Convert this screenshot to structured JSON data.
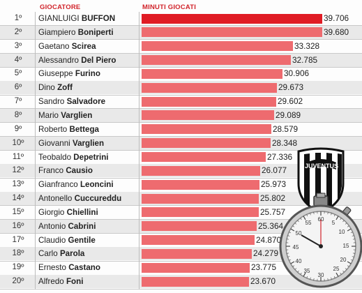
{
  "header": {
    "player_col": "GIOCATORE",
    "minutes_col": "MINUTI GIOCATI"
  },
  "colors": {
    "accent": "#d1232a",
    "bar_top": "#e01c25",
    "bar": "#ee6b6f",
    "row_alt": "#e9e9e9"
  },
  "logo": {
    "text": "JUVENTUS"
  },
  "chart_data": {
    "type": "bar",
    "orientation": "horizontal",
    "title": "",
    "xlabel": "MINUTI GIOCATI",
    "ylabel": "GIOCATORE",
    "xlim": [
      0,
      39706
    ],
    "grid": false,
    "rows": [
      {
        "rank": "1º",
        "first": "GIANLUIGI",
        "last": "BUFFON",
        "value": 39706,
        "label": "39.706"
      },
      {
        "rank": "2º",
        "first": "Giampiero",
        "last": "Boniperti",
        "value": 39680,
        "label": "39.680"
      },
      {
        "rank": "3º",
        "first": "Gaetano",
        "last": "Scirea",
        "value": 33328,
        "label": "33.328"
      },
      {
        "rank": "4º",
        "first": "Alessandro",
        "last": "Del Piero",
        "value": 32785,
        "label": "32.785"
      },
      {
        "rank": "5º",
        "first": "Giuseppe",
        "last": "Furino",
        "value": 30906,
        "label": "30.906"
      },
      {
        "rank": "6º",
        "first": "Dino",
        "last": "Zoff",
        "value": 29673,
        "label": "29.673"
      },
      {
        "rank": "7º",
        "first": "Sandro",
        "last": "Salvadore",
        "value": 29602,
        "label": "29.602"
      },
      {
        "rank": "8º",
        "first": "Mario",
        "last": "Varglien",
        "value": 29089,
        "label": "29.089"
      },
      {
        "rank": "9º",
        "first": "Roberto",
        "last": "Bettega",
        "value": 28579,
        "label": "28.579"
      },
      {
        "rank": "10º",
        "first": "Giovanni",
        "last": "Varglien",
        "value": 28348,
        "label": "28.348"
      },
      {
        "rank": "11º",
        "first": "Teobaldo",
        "last": "Depetrini",
        "value": 27336,
        "label": "27.336"
      },
      {
        "rank": "12º",
        "first": "Franco",
        "last": "Causio",
        "value": 26077,
        "label": "26.077"
      },
      {
        "rank": "13º",
        "first": "Gianfranco",
        "last": "Leoncini",
        "value": 25973,
        "label": "25.973"
      },
      {
        "rank": "14º",
        "first": "Antonello",
        "last": "Cuccureddu",
        "value": 25802,
        "label": "25.802"
      },
      {
        "rank": "15º",
        "first": "Giorgio",
        "last": "Chiellini",
        "value": 25757,
        "label": "25.757"
      },
      {
        "rank": "16º",
        "first": "Antonio",
        "last": "Cabrini",
        "value": 25364,
        "label": "25.364"
      },
      {
        "rank": "17º",
        "first": "Claudio",
        "last": "Gentile",
        "value": 24870,
        "label": "24.870"
      },
      {
        "rank": "18º",
        "first": "Carlo",
        "last": "Parola",
        "value": 24279,
        "label": "24.279"
      },
      {
        "rank": "19º",
        "first": "Ernesto",
        "last": "Castano",
        "value": 23775,
        "label": "23.775"
      },
      {
        "rank": "20º",
        "first": "Alfredo",
        "last": "Foni",
        "value": 23670,
        "label": "23.670"
      }
    ]
  }
}
